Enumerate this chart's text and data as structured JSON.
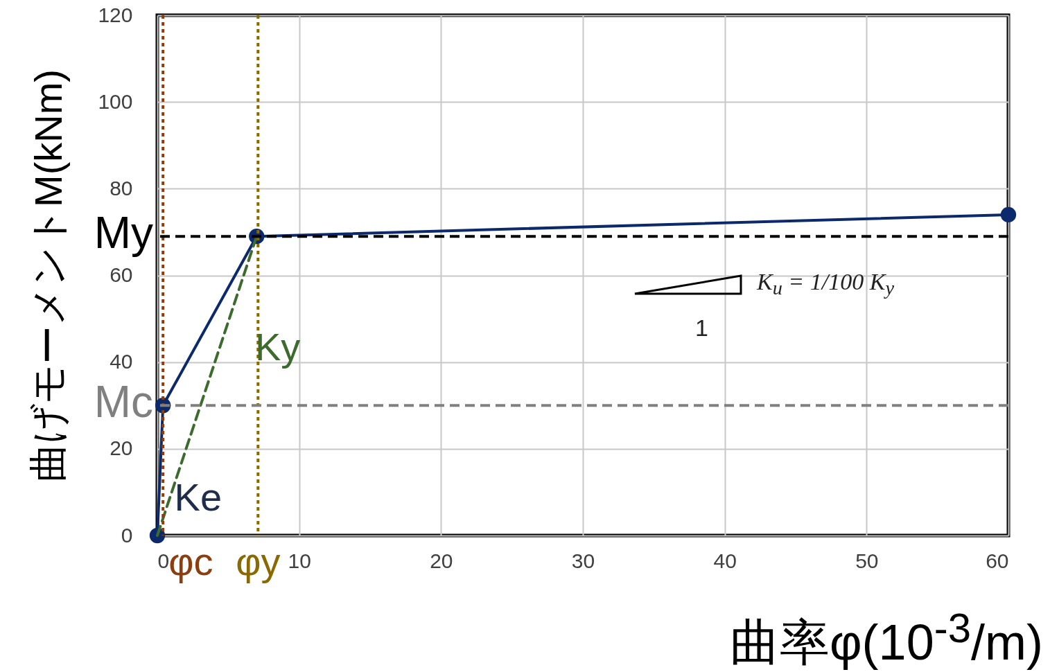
{
  "chart_data": {
    "type": "line",
    "xlabel": "曲率φ(10$^{-3}$/m)",
    "ylabel": "曲げモーメントM(kNm)",
    "x": [
      0,
      0.4,
      7,
      60
    ],
    "series": [
      {
        "color": "#0c2a6b",
        "values": [
          0,
          30,
          69,
          74
        ],
        "marker": "circle",
        "line_style": "solid"
      },
      {
        "color": "#3d6b2e",
        "x": [
          0,
          7
        ],
        "values": [
          0,
          69
        ],
        "marker": "none",
        "line_style": "dashed"
      }
    ],
    "xlim": [
      0,
      60
    ],
    "ylim": [
      0,
      120
    ],
    "xticks": [
      0,
      10,
      20,
      30,
      40,
      50,
      60
    ],
    "yticks": [
      0,
      20,
      40,
      60,
      80,
      100,
      120
    ],
    "grid": true,
    "ref_lines": [
      {
        "axis": "x",
        "value": 0.4,
        "label": "φc",
        "color": "#8b3f10",
        "line_style": "dotted"
      },
      {
        "axis": "x",
        "value": 7.1,
        "label": "φy",
        "color": "#8a6a00",
        "line_style": "dotted"
      },
      {
        "axis": "y",
        "value": 69,
        "label": "My",
        "color": "#000000",
        "line_style": "dashed"
      },
      {
        "axis": "y",
        "value": 30,
        "label": "Mc",
        "color": "#808080",
        "line_style": "dashed"
      }
    ],
    "annotations": [
      {
        "text": "Ke",
        "x": 1.2,
        "y": 9
      },
      "Ky",
      "K$_{u}$ = 1/100 K$_{y}$",
      "1"
    ]
  }
}
